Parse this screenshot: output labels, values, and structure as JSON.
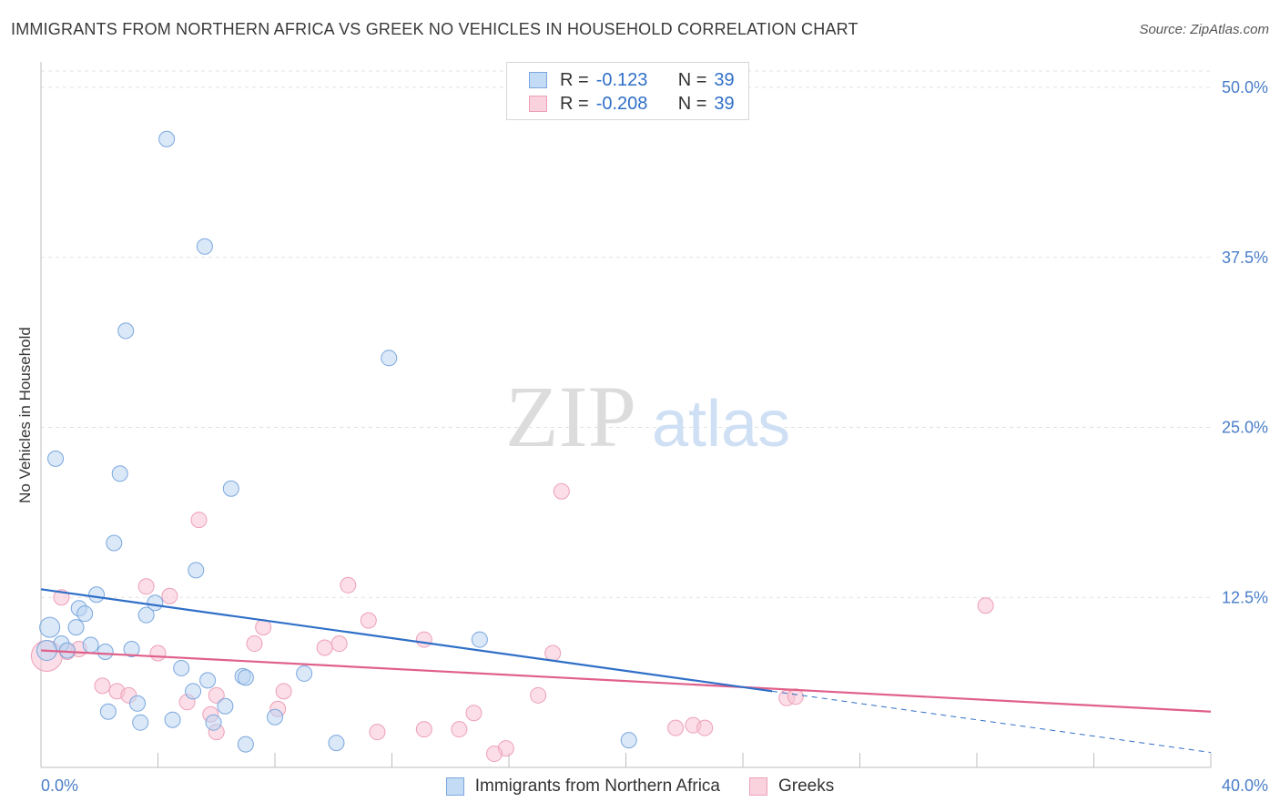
{
  "header": {
    "title": "IMMIGRANTS FROM NORTHERN AFRICA VS GREEK NO VEHICLES IN HOUSEHOLD CORRELATION CHART",
    "source": "Source: ZipAtlas.com"
  },
  "watermark": {
    "zip": "ZIP",
    "atlas": "atlas"
  },
  "legend": {
    "rows": [
      {
        "r_label": "R =",
        "r_value": "-0.123",
        "n_label": "N =",
        "n_value": "39",
        "color": "#a8c8f0"
      },
      {
        "r_label": "R =",
        "r_value": "-0.208",
        "n_label": "N =",
        "n_value": "39",
        "color": "#f5b8cb"
      }
    ]
  },
  "bottom_legend": {
    "series1": "Immigrants from Northern Africa",
    "series2": "Greeks"
  },
  "chart_data": {
    "type": "scatter",
    "title": "IMMIGRANTS FROM NORTHERN AFRICA VS GREEK NO VEHICLES IN HOUSEHOLD CORRELATION CHART",
    "xlabel": "",
    "ylabel": "No Vehicles in Household",
    "xlim": [
      0,
      40
    ],
    "ylim": [
      0,
      50
    ],
    "x_tick_labels": [
      "0.0%",
      "40.0%"
    ],
    "y_tick_labels": [
      "12.5%",
      "25.0%",
      "37.5%",
      "50.0%"
    ],
    "y_ticks": [
      12.5,
      25,
      37.5,
      50
    ],
    "grid": true,
    "colors": {
      "blue": "#2f6fc7",
      "blue_fill": "#a8c8f0",
      "pink": "#e0608a",
      "pink_fill": "#f5b8cb"
    },
    "series": [
      {
        "name": "Immigrants from Northern Africa",
        "points": [
          [
            4.3,
            46.2
          ],
          [
            5.6,
            38.3
          ],
          [
            2.9,
            32.1
          ],
          [
            11.9,
            30.1
          ],
          [
            0.5,
            22.7
          ],
          [
            2.7,
            21.6
          ],
          [
            6.5,
            20.5
          ],
          [
            2.5,
            16.5
          ],
          [
            5.3,
            14.5
          ],
          [
            1.9,
            12.7
          ],
          [
            3.9,
            12.1
          ],
          [
            1.3,
            11.7
          ],
          [
            1.5,
            11.3
          ],
          [
            3.6,
            11.2
          ],
          [
            0.3,
            10.3
          ],
          [
            1.2,
            10.3
          ],
          [
            15.0,
            9.4
          ],
          [
            0.7,
            9.1
          ],
          [
            1.7,
            9.0
          ],
          [
            0.2,
            8.6
          ],
          [
            0.9,
            8.6
          ],
          [
            2.2,
            8.5
          ],
          [
            3.1,
            8.7
          ],
          [
            4.8,
            7.3
          ],
          [
            9.0,
            6.9
          ],
          [
            6.9,
            6.7
          ],
          [
            7.0,
            6.6
          ],
          [
            5.7,
            6.4
          ],
          [
            5.2,
            5.6
          ],
          [
            3.3,
            4.7
          ],
          [
            6.3,
            4.5
          ],
          [
            2.3,
            4.1
          ],
          [
            8.0,
            3.7
          ],
          [
            4.5,
            3.5
          ],
          [
            3.4,
            3.3
          ],
          [
            5.9,
            3.3
          ],
          [
            10.1,
            1.8
          ],
          [
            7.0,
            1.7
          ],
          [
            20.1,
            2.0
          ]
        ],
        "trend": {
          "x": [
            0,
            25
          ],
          "y": [
            13.1,
            5.6
          ]
        },
        "trend_ext": {
          "x": [
            25,
            40
          ],
          "y": [
            5.6,
            1.1
          ]
        }
      },
      {
        "name": "Greeks",
        "points": [
          [
            0.2,
            8.2
          ],
          [
            0.7,
            12.5
          ],
          [
            17.8,
            20.3
          ],
          [
            5.4,
            18.2
          ],
          [
            3.6,
            13.3
          ],
          [
            10.5,
            13.4
          ],
          [
            4.4,
            12.6
          ],
          [
            32.3,
            11.9
          ],
          [
            11.2,
            10.8
          ],
          [
            7.6,
            10.3
          ],
          [
            13.1,
            9.4
          ],
          [
            7.3,
            9.1
          ],
          [
            10.2,
            9.1
          ],
          [
            9.7,
            8.8
          ],
          [
            1.3,
            8.7
          ],
          [
            0.9,
            8.5
          ],
          [
            4.0,
            8.4
          ],
          [
            17.5,
            8.4
          ],
          [
            2.1,
            6.0
          ],
          [
            2.6,
            5.6
          ],
          [
            8.3,
            5.6
          ],
          [
            3.0,
            5.3
          ],
          [
            6.0,
            5.3
          ],
          [
            17.0,
            5.3
          ],
          [
            25.5,
            5.1
          ],
          [
            5.0,
            4.8
          ],
          [
            8.1,
            4.3
          ],
          [
            14.8,
            4.0
          ],
          [
            5.8,
            3.9
          ],
          [
            22.3,
            3.1
          ],
          [
            21.7,
            2.9
          ],
          [
            22.7,
            2.9
          ],
          [
            13.1,
            2.8
          ],
          [
            14.3,
            2.8
          ],
          [
            11.5,
            2.6
          ],
          [
            15.9,
            1.4
          ],
          [
            15.5,
            1.0
          ],
          [
            6.0,
            2.6
          ],
          [
            25.8,
            5.2
          ]
        ],
        "trend": {
          "x": [
            0,
            40
          ],
          "y": [
            8.6,
            4.1
          ]
        }
      }
    ]
  }
}
